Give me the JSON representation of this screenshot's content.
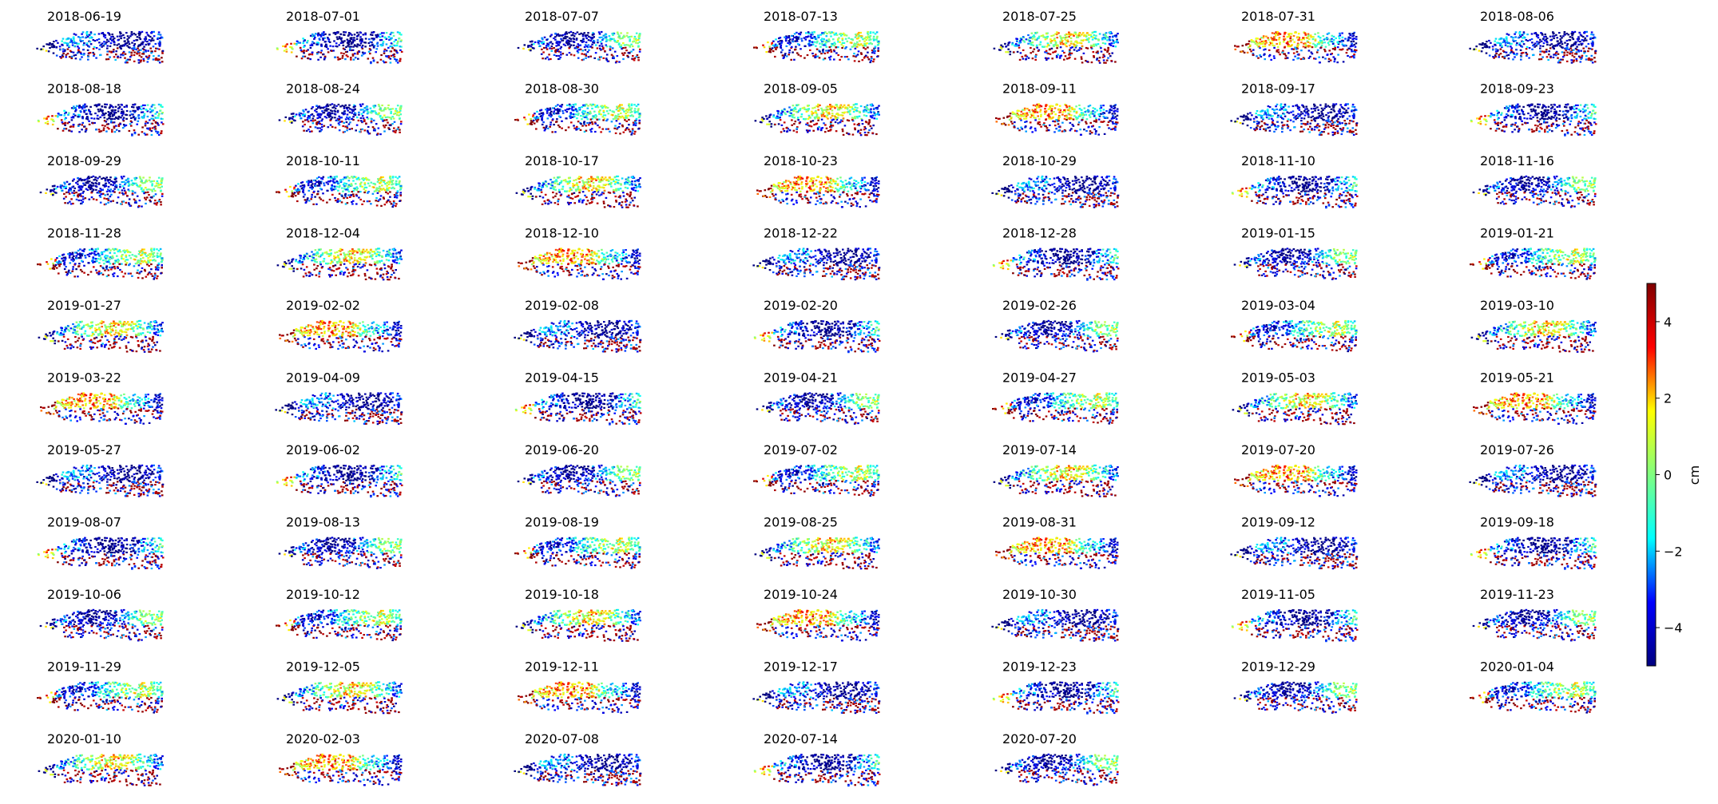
{
  "chart_data": {
    "type": "image-grid",
    "panels": [
      "2018-06-19",
      "2018-07-01",
      "2018-07-07",
      "2018-07-13",
      "2018-07-25",
      "2018-07-31",
      "2018-08-06",
      "2018-08-18",
      "2018-08-24",
      "2018-08-30",
      "2018-09-05",
      "2018-09-11",
      "2018-09-17",
      "2018-09-23",
      "2018-09-29",
      "2018-10-11",
      "2018-10-17",
      "2018-10-23",
      "2018-10-29",
      "2018-11-10",
      "2018-11-16",
      "2018-11-28",
      "2018-12-04",
      "2018-12-10",
      "2018-12-22",
      "2018-12-28",
      "2019-01-15",
      "2019-01-21",
      "2019-01-27",
      "2019-02-02",
      "2019-02-08",
      "2019-02-20",
      "2019-02-26",
      "2019-03-04",
      "2019-03-10",
      "2019-03-22",
      "2019-04-09",
      "2019-04-15",
      "2019-04-21",
      "2019-04-27",
      "2019-05-03",
      "2019-05-21",
      "2019-05-27",
      "2019-06-02",
      "2019-06-20",
      "2019-07-02",
      "2019-07-14",
      "2019-07-20",
      "2019-07-26",
      "2019-08-07",
      "2019-08-13",
      "2019-08-19",
      "2019-08-25",
      "2019-08-31",
      "2019-09-12",
      "2019-09-18",
      "2019-10-06",
      "2019-10-12",
      "2019-10-18",
      "2019-10-24",
      "2019-10-30",
      "2019-11-05",
      "2019-11-23",
      "2019-11-29",
      "2019-12-05",
      "2019-12-11",
      "2019-12-17",
      "2019-12-23",
      "2019-12-29",
      "2020-01-04",
      "2020-01-10",
      "2020-02-03",
      "2020-07-08",
      "2020-07-14",
      "2020-07-20"
    ],
    "colorbar": {
      "label": "cm",
      "ylim": [
        -5,
        5
      ],
      "yticks": [
        {
          "value": -4,
          "label": "−4"
        },
        {
          "value": -2,
          "label": "−2"
        },
        0,
        2,
        4
      ],
      "colormap": [
        "#000080",
        "#0000ff",
        "#00ffff",
        "#80ff80",
        "#ffff00",
        "#ff0000",
        "#800000"
      ]
    }
  }
}
